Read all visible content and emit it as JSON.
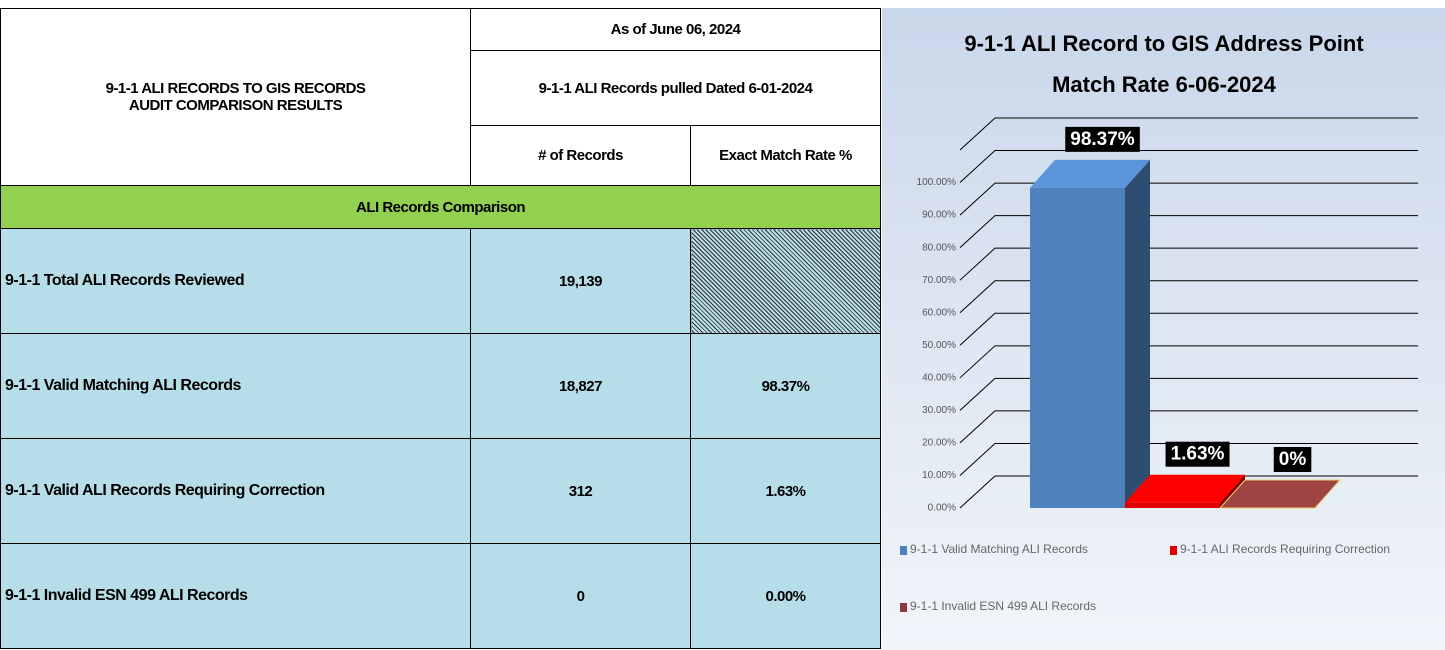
{
  "table": {
    "title": [
      "9-1-1 ALI RECORDS TO GIS RECORDS",
      "AUDIT COMPARISON RESULTS"
    ],
    "as_of": "As of June 06, 2024",
    "pulled": "9-1-1 ALI Records pulled Dated 6-01-2024",
    "columns": [
      "# of Records",
      "Exact Match Rate %"
    ],
    "section": "ALI Records Comparison",
    "rows": [
      [
        "9-1-1 Total ALI Records Reviewed",
        "19,139"
      ],
      [
        "9-1-1 Valid Matching ALI Records",
        "18,827",
        "98.37%"
      ],
      [
        "9-1-1 Valid ALI Records Requiring Correction",
        "312",
        "1.63%"
      ],
      [
        "9-1-1 Invalid ESN 499 ALI Records",
        "0",
        "0.00%"
      ]
    ]
  },
  "chart_data": {
    "type": "bar3d",
    "title": [
      "9-1-1 ALI Record to GIS Address Point",
      "Match Rate 6-06-2024"
    ],
    "series": [
      {
        "name": "9-1-1 Valid Matching ALI Records",
        "color": "#4f81bd",
        "values": [
          98.37
        ],
        "value_labels": [
          "98.37%"
        ]
      },
      {
        "name": "9-1-1  ALI Records Requiring Correction",
        "color": "#e00000",
        "values": [
          1.63
        ],
        "value_labels": [
          "1.63%"
        ]
      },
      {
        "name": "9-1-1 Invalid ESN 499 ALI Records",
        "color": "#8b3a3a",
        "values": [
          0
        ],
        "value_labels": [
          "0%"
        ]
      }
    ],
    "ylim": [
      0,
      110
    ],
    "yticks": [
      {
        "value": 0,
        "label": "0.00%"
      },
      {
        "value": 10,
        "label": "10.00%"
      },
      {
        "value": 20,
        "label": "20.00%"
      },
      {
        "value": 30,
        "label": "30.00%"
      },
      {
        "value": 40,
        "label": "40.00%"
      },
      {
        "value": 50,
        "label": "50.00%"
      },
      {
        "value": 60,
        "label": "60.00%"
      },
      {
        "value": 70,
        "label": "70.00%"
      },
      {
        "value": 80,
        "label": "80.00%"
      },
      {
        "value": 90,
        "label": "90.00%"
      },
      {
        "value": 100,
        "label": "100.00%"
      }
    ],
    "grid": true,
    "legend": "bottom"
  }
}
